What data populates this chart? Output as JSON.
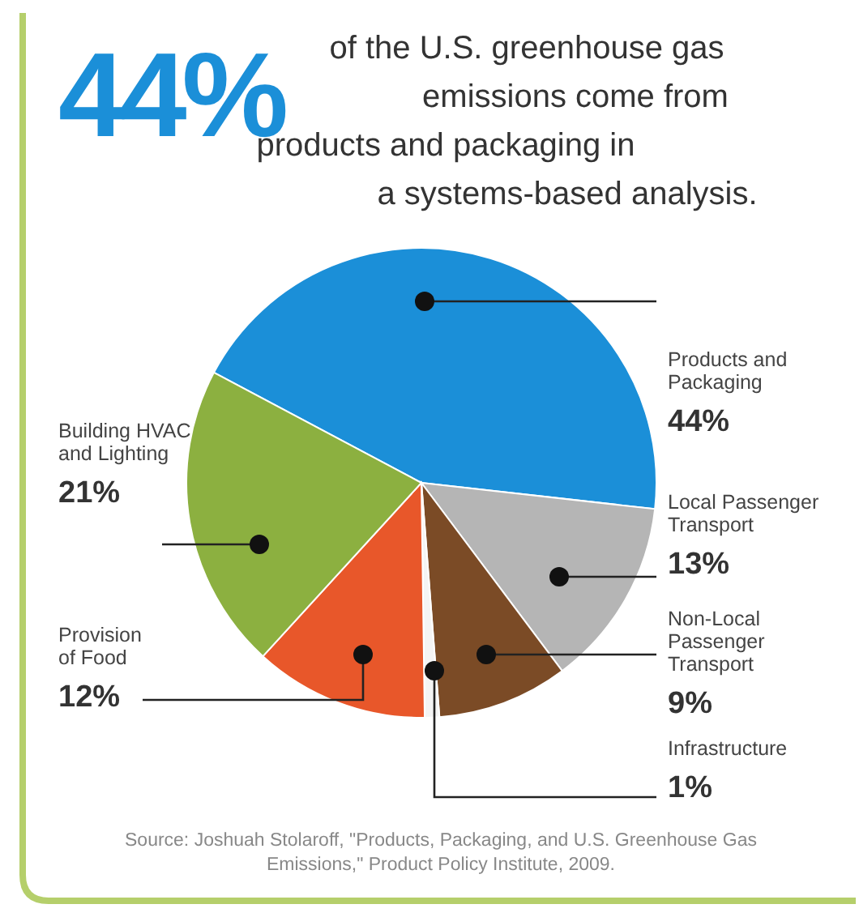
{
  "chart_data": {
    "type": "pie",
    "title": "44%",
    "subtitle": "of the U.S. greenhouse gas emissions come from products and packaging in a systems-based analysis.",
    "categories": [
      "Products and Packaging",
      "Local Passenger Transport",
      "Non-Local Passenger Transport",
      "Infrastructure",
      "Provision of Food",
      "Building HVAC and Lighting"
    ],
    "values": [
      44,
      13,
      9,
      1,
      12,
      21
    ],
    "colors": [
      "#1b8fd8",
      "#b5b5b5",
      "#7b4b26",
      "#f4f4f4",
      "#e8572a",
      "#8cb040"
    ],
    "value_labels": [
      "44%",
      "13%",
      "9%",
      "1%",
      "12%",
      "21%"
    ],
    "annotations": [
      "Source: Joshuah Stolaroff, \"Products, Packaging, and U.S. Greenhouse Gas Emissions,\" Product Policy Institute, 2009."
    ]
  }
}
